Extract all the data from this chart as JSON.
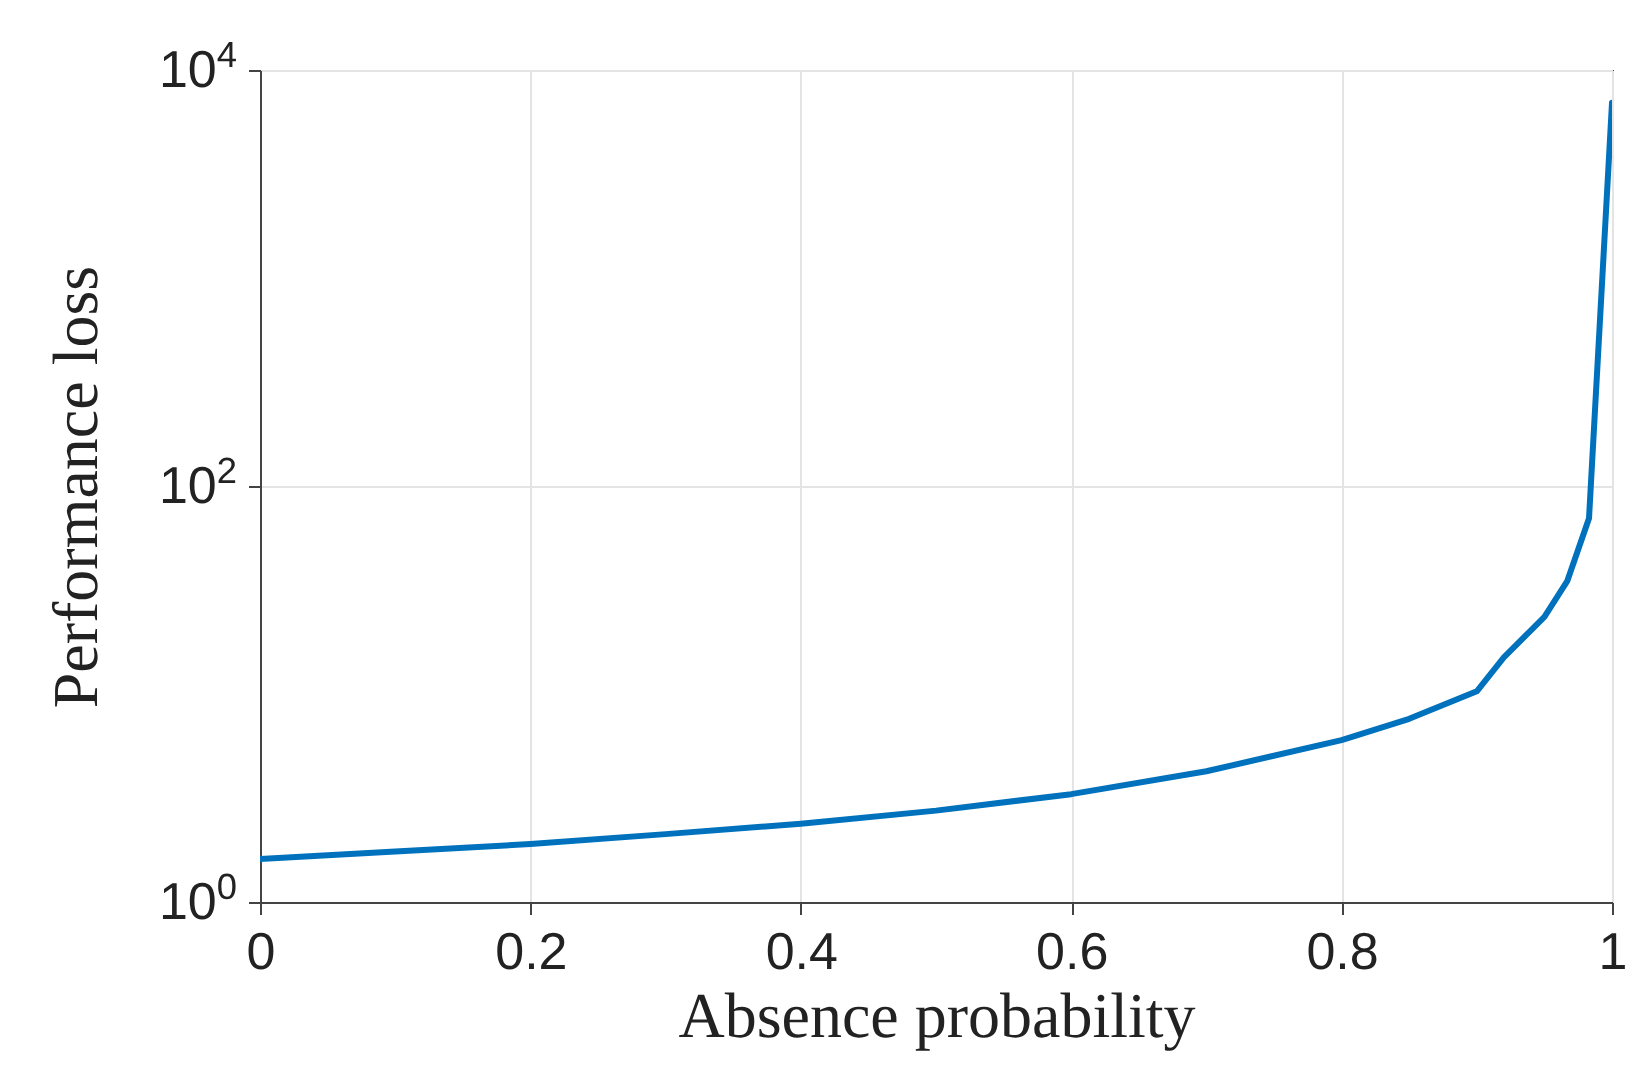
{
  "chart_data": {
    "type": "line",
    "xlabel": "Absence probability",
    "ylabel": "Performance loss",
    "x": [
      0,
      0.1,
      0.2,
      0.3,
      0.4,
      0.5,
      0.6,
      0.7,
      0.8,
      0.85,
      0.9,
      0.92,
      0.95,
      0.967,
      0.983,
      1.0
    ],
    "series": [
      {
        "color": "#0072bd",
        "values": [
          1.61,
          1.75,
          1.9,
          2.12,
          2.38,
          2.75,
          3.3,
          4.25,
          6.0,
          7.6,
          10.3,
          15,
          23.5,
          35,
          70,
          6950
        ]
      }
    ],
    "xlim": [
      0,
      1
    ],
    "xticks": [
      0,
      0.2,
      0.4,
      0.6,
      0.8,
      1
    ],
    "ylim": [
      1,
      10000
    ],
    "yticks": [
      {
        "value": 1,
        "label": "10$^{0}$"
      },
      {
        "value": 100,
        "label": "10$^{2}$"
      },
      {
        "value": 10000,
        "label": "10$^{4}$"
      }
    ],
    "log": true,
    "grid": true,
    "marker": "none",
    "line_style": "solid"
  }
}
